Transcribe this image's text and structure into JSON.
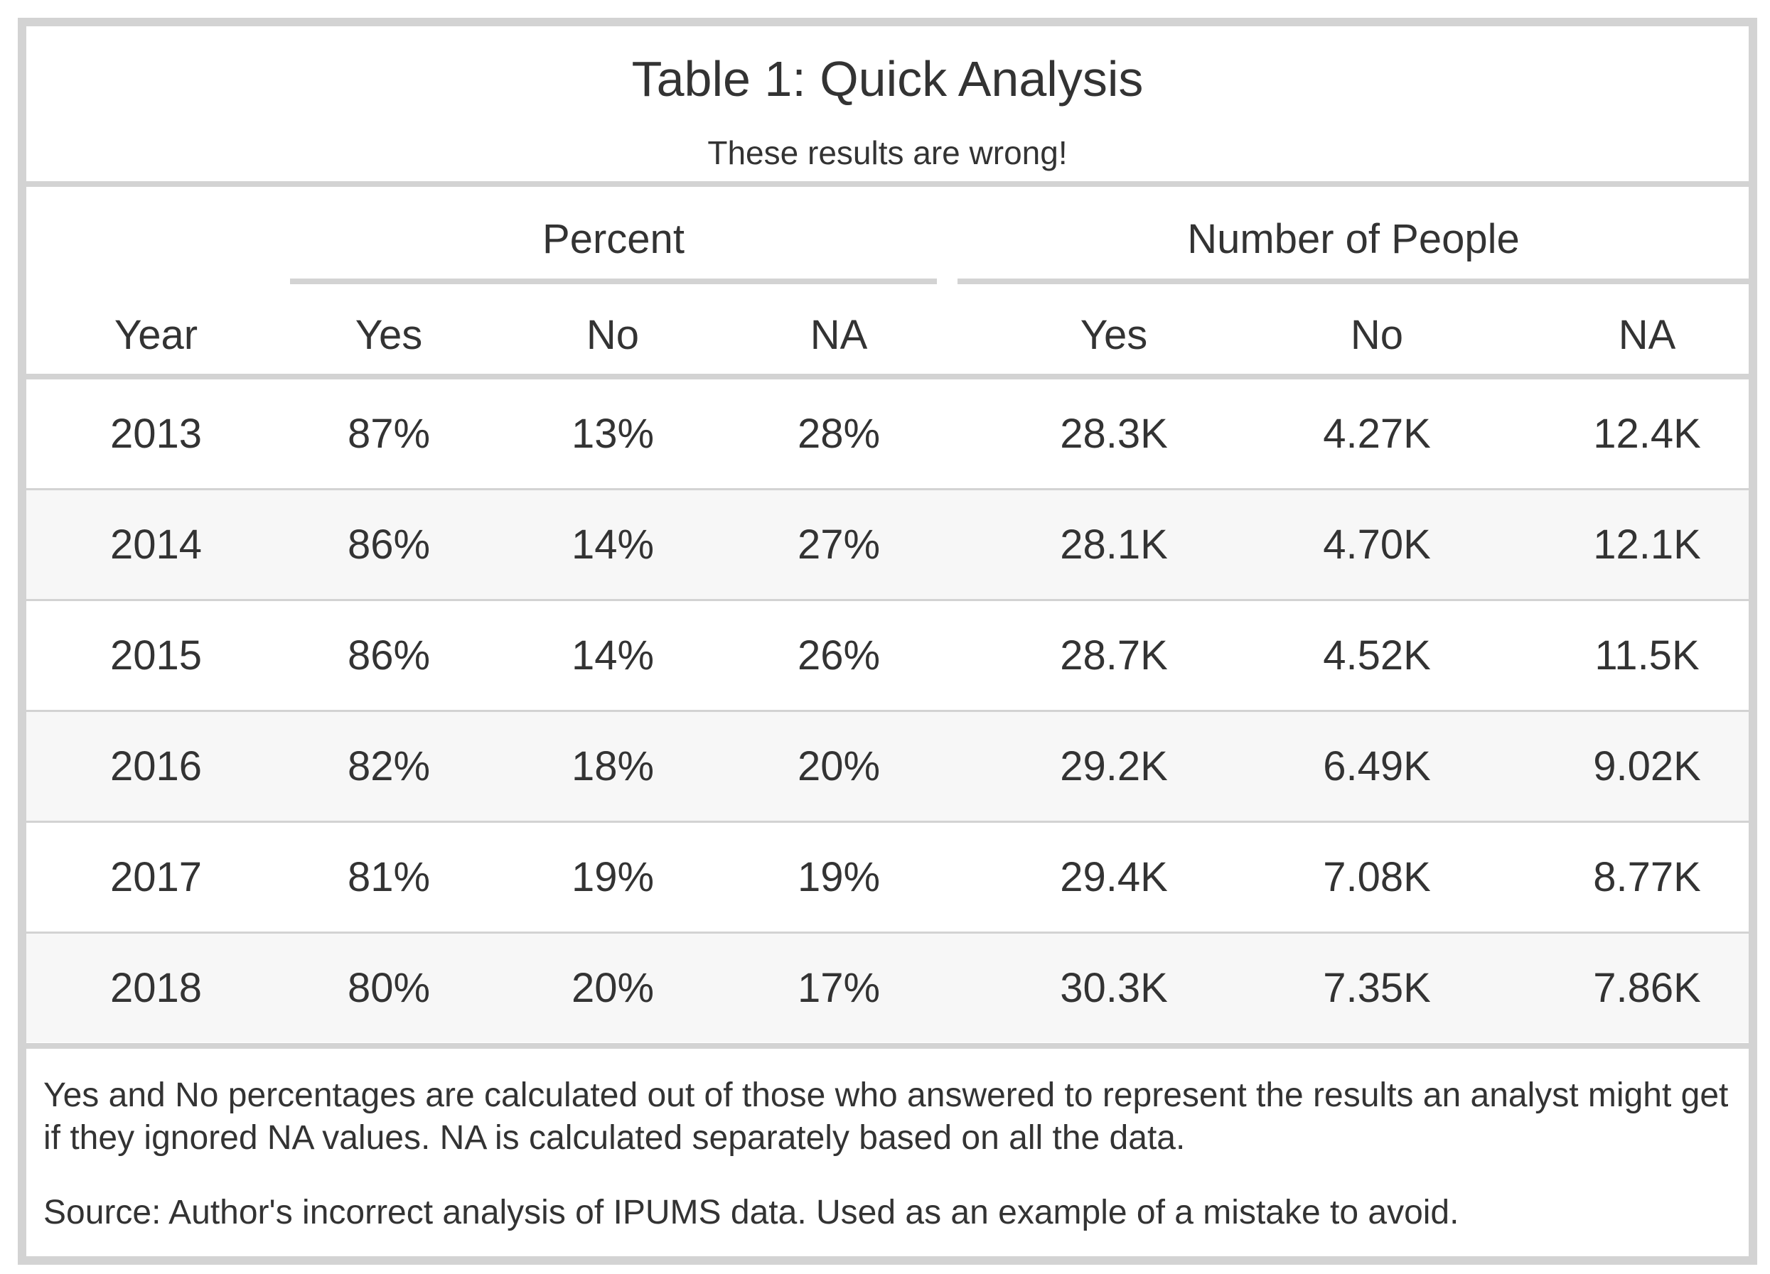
{
  "table": {
    "title": "Table 1: Quick Analysis",
    "subtitle": "These results are wrong!",
    "spanners": {
      "percent": "Percent",
      "people": "Number of People"
    },
    "columns": [
      "Year",
      "Yes",
      "No",
      "NA",
      "Yes",
      "No",
      "NA"
    ],
    "rows": [
      [
        "2013",
        "87%",
        "13%",
        "28%",
        "28.3K",
        "4.27K",
        "12.4K"
      ],
      [
        "2014",
        "86%",
        "14%",
        "27%",
        "28.1K",
        "4.70K",
        "12.1K"
      ],
      [
        "2015",
        "86%",
        "14%",
        "26%",
        "28.7K",
        "4.52K",
        "11.5K"
      ],
      [
        "2016",
        "82%",
        "18%",
        "20%",
        "29.2K",
        "6.49K",
        "9.02K"
      ],
      [
        "2017",
        "81%",
        "19%",
        "19%",
        "29.4K",
        "7.08K",
        "8.77K"
      ],
      [
        "2018",
        "80%",
        "20%",
        "17%",
        "30.3K",
        "7.35K",
        "7.86K"
      ]
    ],
    "footnote": "Yes and No percentages are calculated out of those who answered to represent the results an analyst might get if they ignored NA values. NA is calculated separately based on all the data.",
    "source": "Source: Author's incorrect analysis of IPUMS data. Used as an example of a mistake to avoid."
  },
  "colors": {
    "border": "#d3d3d3",
    "stripe": "#f7f7f7",
    "text": "#333333"
  }
}
